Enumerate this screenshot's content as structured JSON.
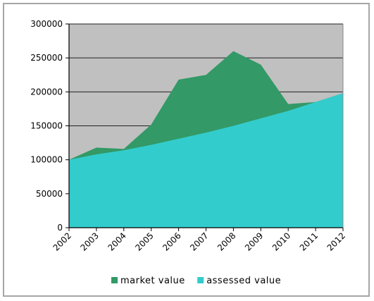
{
  "chart_data": {
    "type": "area",
    "stacked": false,
    "x": [
      "2002",
      "2003",
      "2004",
      "2005",
      "2006",
      "2007",
      "2008",
      "2009",
      "2010",
      "2011",
      "2012"
    ],
    "series": [
      {
        "name": "market value",
        "color": "#339966",
        "values": [
          100000,
          118000,
          116000,
          152000,
          218000,
          225000,
          260000,
          240000,
          182000,
          185000,
          198000
        ]
      },
      {
        "name": "assessed value",
        "color": "#33cccc",
        "values": [
          100000,
          108000,
          114000,
          122000,
          131000,
          140000,
          150000,
          161000,
          172000,
          185000,
          198000
        ]
      }
    ],
    "yticks": [
      "0",
      "50000",
      "100000",
      "150000",
      "200000",
      "250000",
      "300000"
    ],
    "ylim": [
      0,
      300000
    ],
    "plot_background": "#c0c0c0",
    "grid": true,
    "legend_position": "bottom",
    "title": "",
    "xlabel": "",
    "ylabel": ""
  }
}
